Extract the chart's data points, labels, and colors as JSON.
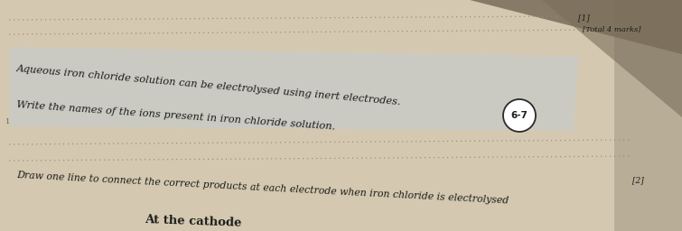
{
  "bg_color": "#d4c9b0",
  "page_bg": "#ede5d4",
  "highlight_color": "#c0cdd8",
  "shadow_color": "#7a6e5a",
  "text_color": "#1c1c1a",
  "dot_color": "#9a9080",
  "line1_text": "Aqueous iron chloride solution can be electrolysed using inert electrodes.",
  "line2_text": "Write the names of the ions present in iron chloride solution.",
  "line3_text": "Draw one line to connect the correct products at each electrode when iron chloride is electrolysed",
  "line4_text": "At the cathode",
  "marks_1_text": "[1]",
  "total_marks_text": "[Total 4 marks]",
  "circle_text": "6-7",
  "marks_2_text": "[2]",
  "highlight_alpha": 0.45,
  "shadow_alpha": 0.85
}
